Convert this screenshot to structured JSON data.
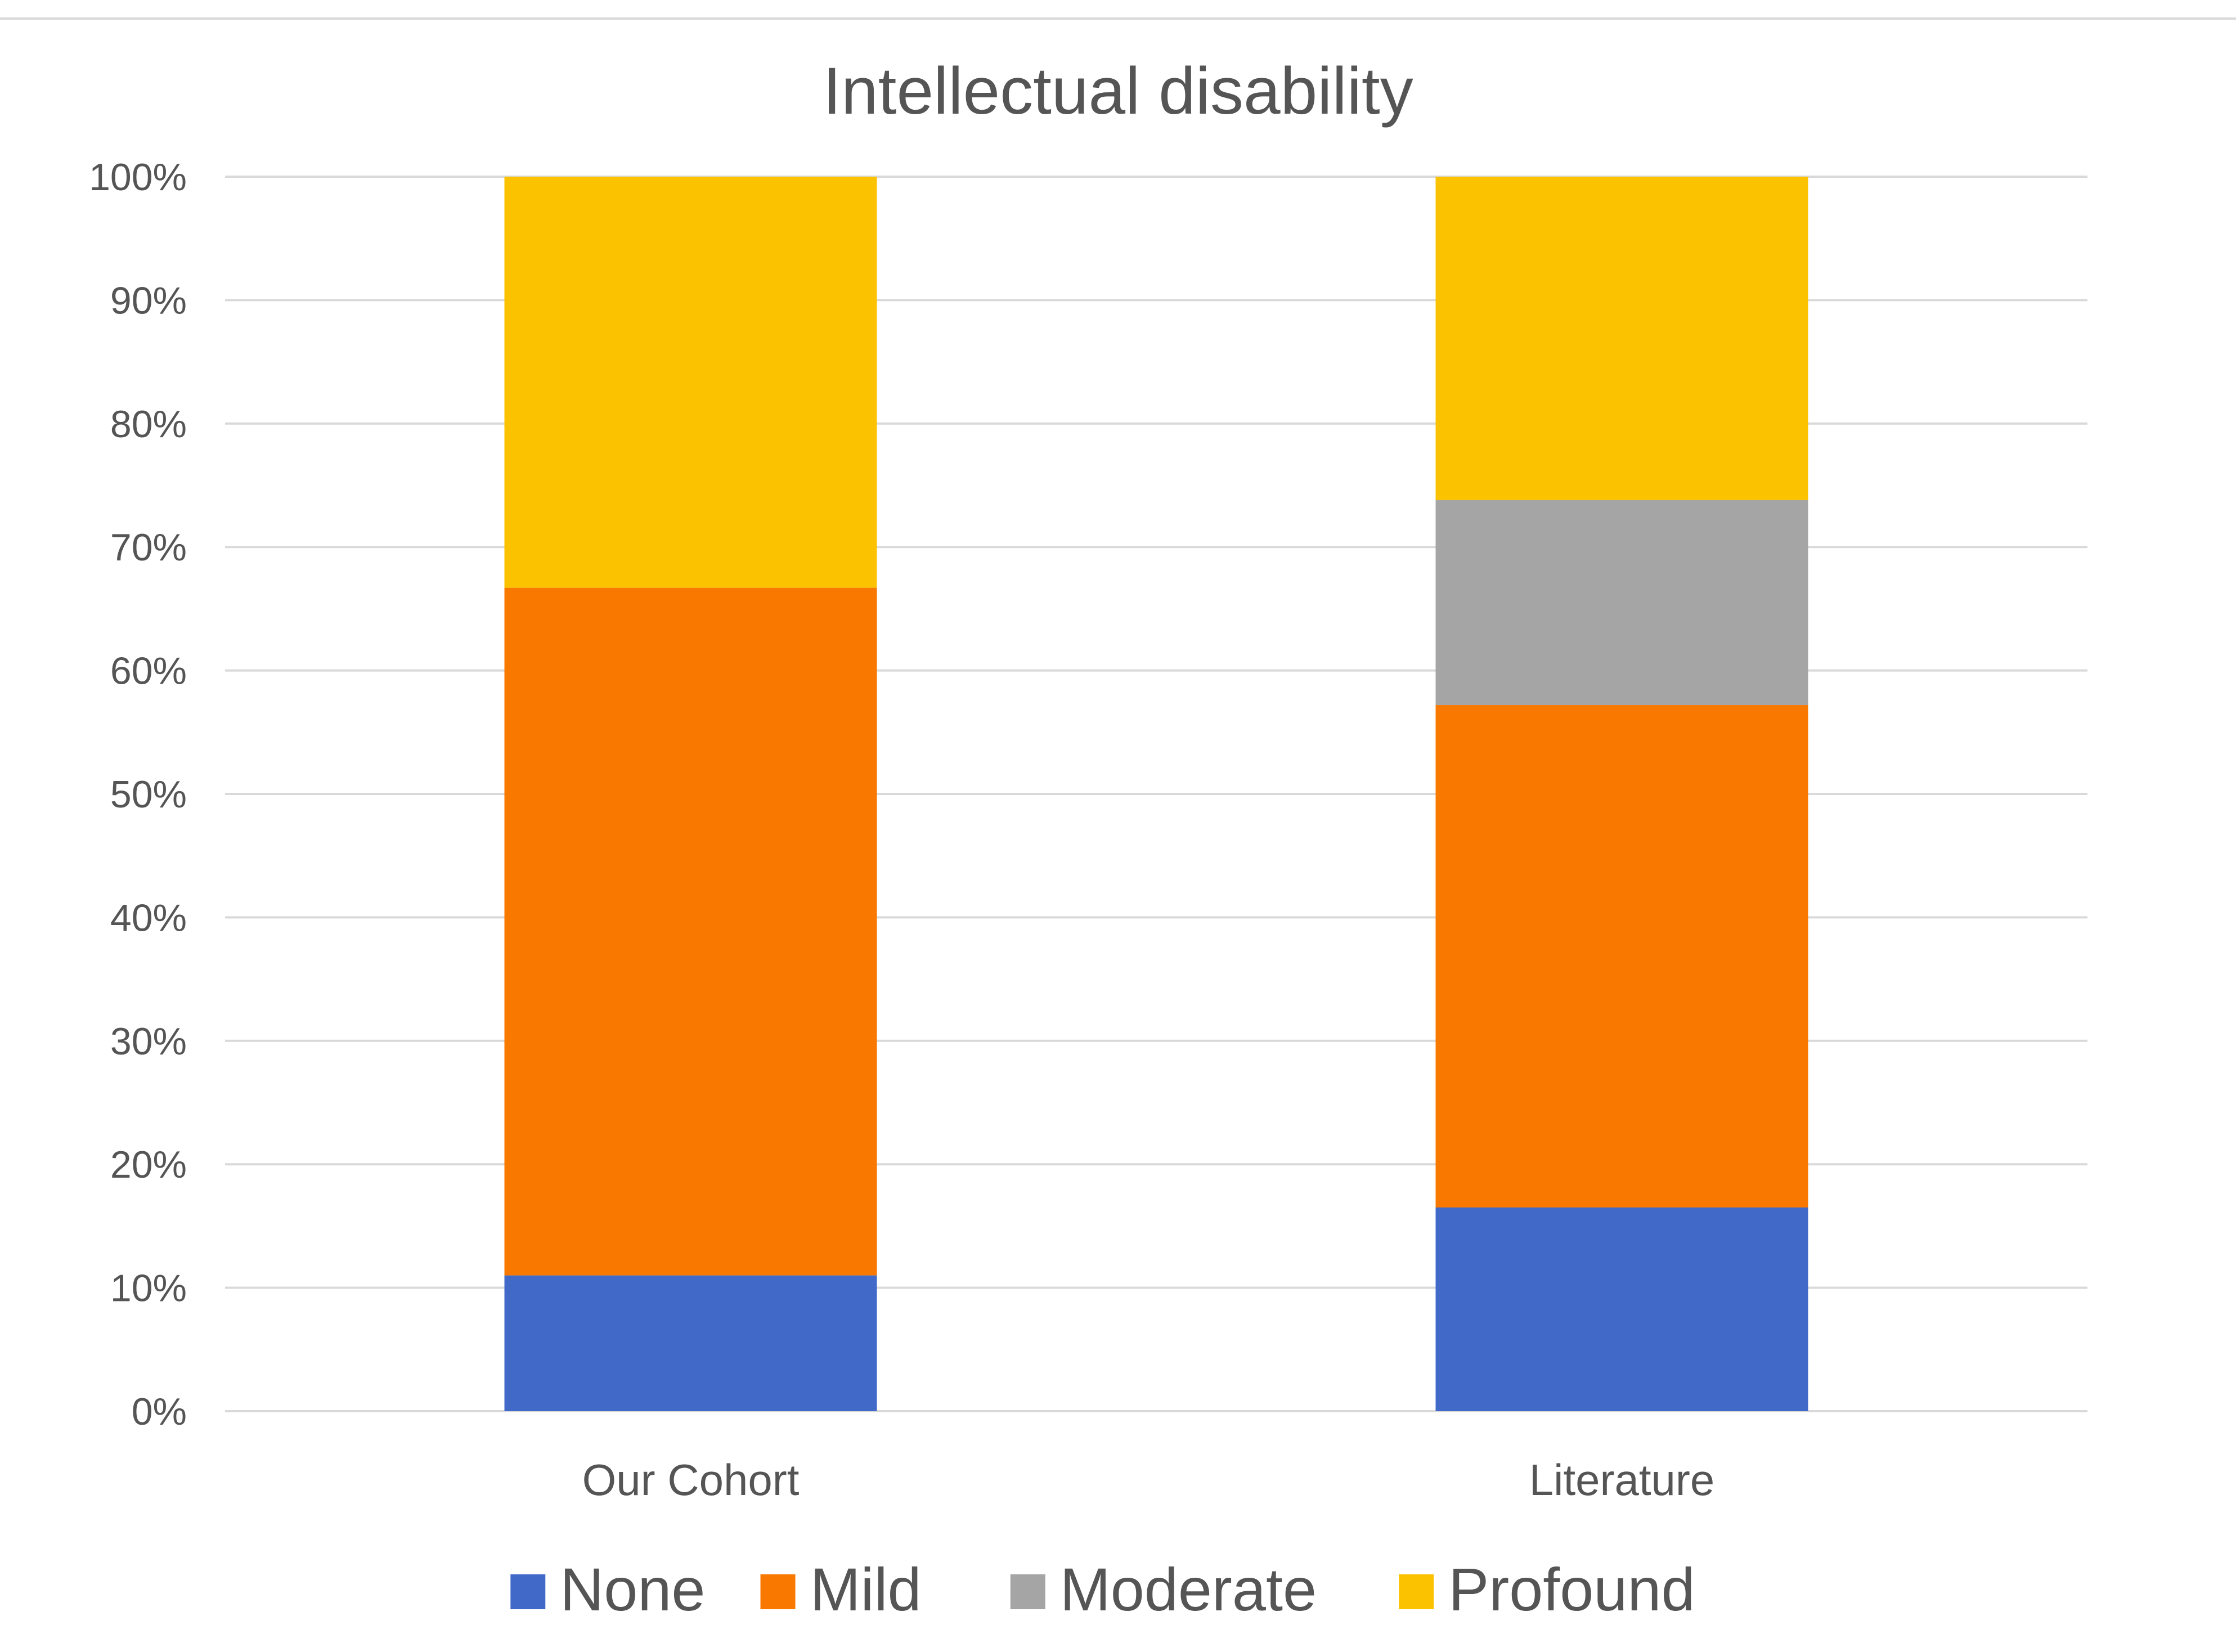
{
  "chart_data": {
    "type": "bar",
    "stacked": true,
    "title": "Intellectual disability",
    "xlabel": "",
    "ylabel": "",
    "ylim": [
      0,
      100
    ],
    "y_unit": "%",
    "yticks": [
      "0%",
      "10%",
      "20%",
      "30%",
      "40%",
      "50%",
      "60%",
      "70%",
      "80%",
      "90%",
      "100%"
    ],
    "grid": true,
    "legend_position": "bottom",
    "categories": [
      "Our Cohort",
      "Literature"
    ],
    "series": [
      {
        "name": "None",
        "values": [
          11,
          16.5
        ],
        "color": "#4169C8"
      },
      {
        "name": "Mild",
        "values": [
          55.7,
          40.7
        ],
        "color": "#F87800"
      },
      {
        "name": "Moderate",
        "values": [
          0,
          16.6
        ],
        "color": "#A5A5A5"
      },
      {
        "name": "Profound",
        "values": [
          33.3,
          26.2
        ],
        "color": "#FBC200"
      }
    ]
  }
}
